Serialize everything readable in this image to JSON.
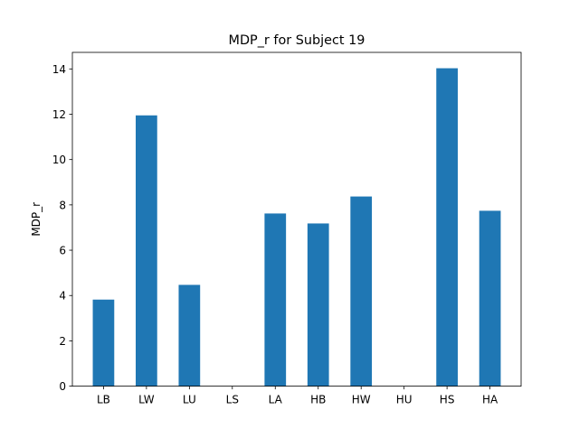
{
  "chart_data": {
    "type": "bar",
    "title": "MDP_r for Subject 19",
    "xlabel": "",
    "ylabel": "MDP_r",
    "categories": [
      "LB",
      "LW",
      "LU",
      "LS",
      "LA",
      "HB",
      "HW",
      "HU",
      "HS",
      "HA"
    ],
    "values": [
      3.82,
      11.95,
      4.47,
      0,
      7.62,
      7.18,
      8.37,
      0,
      14.03,
      7.74
    ],
    "ylim": [
      0,
      14.73
    ],
    "yticks": [
      0,
      2,
      4,
      6,
      8,
      10,
      12,
      14
    ],
    "ytick_labels": [
      "0",
      "2",
      "4",
      "6",
      "8",
      "10",
      "12",
      "14"
    ],
    "bar_color": "#1f77b4",
    "grid": false,
    "legend": "none"
  }
}
